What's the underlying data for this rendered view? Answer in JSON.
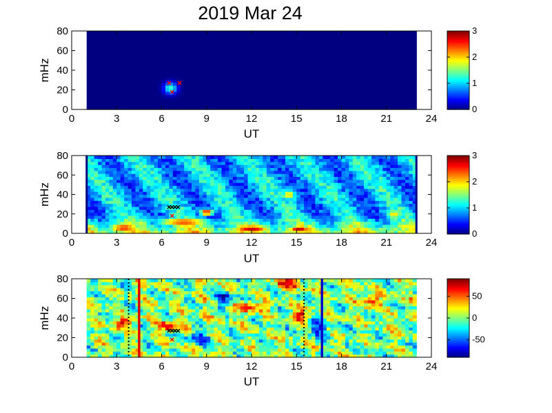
{
  "title": "2019 Mar 24",
  "colors": {
    "background": "#ffffff",
    "axes": "#000000",
    "colormap": "jet"
  },
  "chart_data": [
    {
      "type": "heatmap",
      "panel": "top",
      "xlabel": "UT",
      "ylabel": "mHz",
      "xlim": [
        0,
        24
      ],
      "ylim": [
        0,
        80
      ],
      "xticks": [
        "0",
        "3",
        "6",
        "9",
        "12",
        "15",
        "18",
        "21",
        "24"
      ],
      "yticks": [
        "0",
        "20",
        "40",
        "60",
        "80"
      ],
      "data_range_ut": [
        1,
        23
      ],
      "colorbar": {
        "range": [
          0,
          3
        ],
        "ticks": [
          "0",
          "1",
          "2",
          "3"
        ]
      },
      "background_value": 0.0,
      "features": [
        {
          "ut": 6.6,
          "mhz": 22,
          "peak": 1.3,
          "width_ut": 0.45,
          "width_mhz": 6
        }
      ],
      "markers": [
        {
          "ut": 6.5,
          "mhz": 27,
          "color": "#ff0000"
        },
        {
          "ut": 7.2,
          "mhz": 27,
          "color": "#ff0000"
        },
        {
          "ut": 6.7,
          "mhz": 18,
          "color": "#ff0000"
        }
      ]
    },
    {
      "type": "heatmap",
      "panel": "middle",
      "xlabel": "UT",
      "ylabel": "mHz",
      "xlim": [
        0,
        24
      ],
      "ylim": [
        0,
        80
      ],
      "xticks": [
        "0",
        "3",
        "6",
        "9",
        "12",
        "15",
        "18",
        "21",
        "24"
      ],
      "yticks": [
        "0",
        "20",
        "40",
        "60",
        "80"
      ],
      "data_range_ut": [
        1,
        23
      ],
      "colorbar": {
        "range": [
          0,
          3
        ],
        "ticks": [
          "0",
          "1",
          "2",
          "3"
        ]
      },
      "edge_lines_ut": [
        1,
        23
      ],
      "features": [
        {
          "ut": 3.5,
          "mhz": 6,
          "peak": 2.6,
          "width_ut": 1.2,
          "width_mhz": 5
        },
        {
          "ut": 9.0,
          "mhz": 22,
          "peak": 2.7,
          "width_ut": 0.5,
          "width_mhz": 4
        },
        {
          "ut": 12.0,
          "mhz": 5,
          "peak": 2.8,
          "width_ut": 1.5,
          "width_mhz": 5
        },
        {
          "ut": 15.2,
          "mhz": 4,
          "peak": 2.9,
          "width_ut": 0.9,
          "width_mhz": 4
        },
        {
          "ut": 14.5,
          "mhz": 40,
          "peak": 2.0,
          "width_ut": 0.5,
          "width_mhz": 6
        },
        {
          "ut": 7.5,
          "mhz": 12,
          "peak": 2.5,
          "width_ut": 2.0,
          "width_mhz": 5
        },
        {
          "ut": 21.5,
          "mhz": 20,
          "peak": 2.0,
          "width_ut": 0.6,
          "width_mhz": 6
        }
      ],
      "markers": [
        {
          "ut": 6.5,
          "mhz": 27,
          "color": "#000000"
        },
        {
          "ut": 6.7,
          "mhz": 27,
          "color": "#000000"
        },
        {
          "ut": 6.9,
          "mhz": 27,
          "color": "#000000"
        },
        {
          "ut": 7.1,
          "mhz": 27,
          "color": "#000000"
        },
        {
          "ut": 6.7,
          "mhz": 18,
          "color": "#ff0000"
        }
      ]
    },
    {
      "type": "heatmap",
      "panel": "bottom",
      "xlabel": "UT",
      "ylabel": "mHz",
      "xlim": [
        0,
        24
      ],
      "ylim": [
        0,
        80
      ],
      "xticks": [
        "0",
        "3",
        "6",
        "9",
        "12",
        "15",
        "18",
        "21",
        "24"
      ],
      "yticks": [
        "0",
        "20",
        "40",
        "60",
        "80"
      ],
      "data_range_ut": [
        1,
        23
      ],
      "colorbar": {
        "range": [
          -90,
          90
        ],
        "ticks": [
          "50",
          "0",
          "-50"
        ]
      },
      "vertical_lines": [
        {
          "ut": 3.8,
          "color": "#000000",
          "style": "dotted"
        },
        {
          "ut": 4.5,
          "color": "#e00000",
          "style": "solid"
        },
        {
          "ut": 15.5,
          "color": "#000000",
          "style": "dotted"
        },
        {
          "ut": 16.7,
          "color": "#0000c8",
          "style": "solid"
        }
      ],
      "features": [
        {
          "ut": 12.0,
          "mhz": 52,
          "peak": 70,
          "width_ut": 0.8,
          "width_mhz": 5
        },
        {
          "ut": 15.3,
          "mhz": 42,
          "peak": 75,
          "width_ut": 0.5,
          "width_mhz": 6
        },
        {
          "ut": 20.0,
          "mhz": 58,
          "peak": 70,
          "width_ut": 0.6,
          "width_mhz": 6
        },
        {
          "ut": 6.5,
          "mhz": 32,
          "peak": 70,
          "width_ut": 0.6,
          "width_mhz": 6
        },
        {
          "ut": 3.5,
          "mhz": 35,
          "peak": 60,
          "width_ut": 0.6,
          "width_mhz": 6
        },
        {
          "ut": 14.5,
          "mhz": 75,
          "peak": 65,
          "width_ut": 0.8,
          "width_mhz": 5
        },
        {
          "ut": 10.2,
          "mhz": 60,
          "peak": -65,
          "width_ut": 0.6,
          "width_mhz": 7
        },
        {
          "ut": 8.5,
          "mhz": 20,
          "peak": -60,
          "width_ut": 0.8,
          "width_mhz": 6
        },
        {
          "ut": 16.5,
          "mhz": 30,
          "peak": -60,
          "width_ut": 0.6,
          "width_mhz": 7
        }
      ],
      "markers": [
        {
          "ut": 6.5,
          "mhz": 27,
          "color": "#000000"
        },
        {
          "ut": 6.7,
          "mhz": 27,
          "color": "#000000"
        },
        {
          "ut": 6.9,
          "mhz": 27,
          "color": "#000000"
        },
        {
          "ut": 7.1,
          "mhz": 27,
          "color": "#000000"
        },
        {
          "ut": 6.7,
          "mhz": 18,
          "color": "#ff0000"
        }
      ]
    }
  ]
}
